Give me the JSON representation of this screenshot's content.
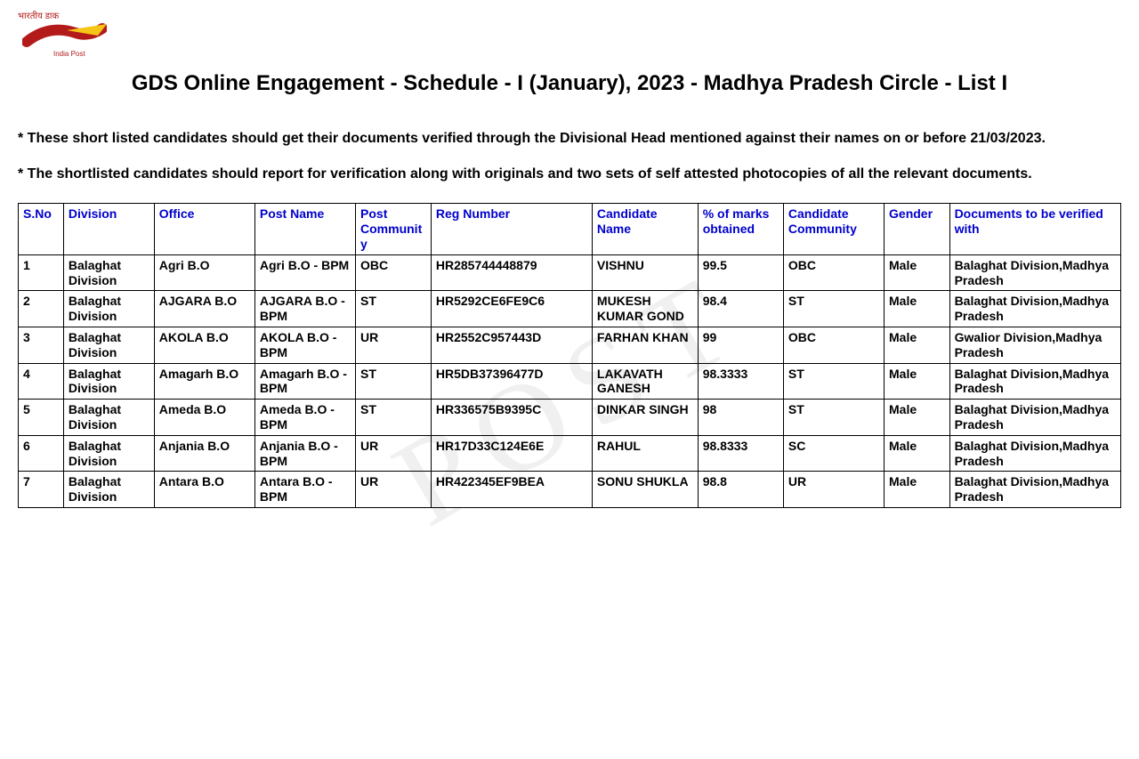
{
  "logo": {
    "top_text": "भारतीय डाक",
    "sub_text": "India Post",
    "color_red": "#b31b1b",
    "color_yellow": "#f5c518"
  },
  "title": "GDS Online Engagement - Schedule - I (January), 2023 - Madhya Pradesh Circle - List I",
  "notes": [
    "* These short listed candidates should get their documents verified through the Divisional Head mentioned against their names on or before 21/03/2023.",
    "* The shortlisted candidates should report for verification along with originals and two sets of self attested photocopies of all the relevant documents."
  ],
  "watermark": "POST",
  "table": {
    "headers": {
      "sno": "S.No",
      "division": "Division",
      "office": "Office",
      "post_name": "Post Name",
      "post_community": "Post Community",
      "reg_number": "Reg Number",
      "candidate_name": "Candidate Name",
      "marks": "% of marks obtained",
      "candidate_community": "Candidate Community",
      "gender": "Gender",
      "verified_with": "Documents to be verified with"
    },
    "rows": [
      {
        "sno": "1",
        "division": "Balaghat Division",
        "office": "Agri B.O",
        "post_name": "Agri B.O - BPM",
        "post_community": "OBC",
        "reg_number": "HR285744448879",
        "candidate_name": "VISHNU",
        "marks": "99.5",
        "candidate_community": "OBC",
        "gender": "Male",
        "verified_with": "Balaghat Division,Madhya Pradesh"
      },
      {
        "sno": "2",
        "division": "Balaghat Division",
        "office": "AJGARA B.O",
        "post_name": "AJGARA B.O - BPM",
        "post_community": "ST",
        "reg_number": "HR5292CE6FE9C6",
        "candidate_name": "MUKESH KUMAR GOND",
        "marks": "98.4",
        "candidate_community": "ST",
        "gender": "Male",
        "verified_with": "Balaghat Division,Madhya Pradesh"
      },
      {
        "sno": "3",
        "division": "Balaghat Division",
        "office": "AKOLA B.O",
        "post_name": "AKOLA B.O - BPM",
        "post_community": "UR",
        "reg_number": "HR2552C957443D",
        "candidate_name": "FARHAN KHAN",
        "marks": "99",
        "candidate_community": "OBC",
        "gender": "Male",
        "verified_with": "Gwalior Division,Madhya Pradesh"
      },
      {
        "sno": "4",
        "division": "Balaghat Division",
        "office": "Amagarh B.O",
        "post_name": "Amagarh B.O - BPM",
        "post_community": "ST",
        "reg_number": "HR5DB37396477D",
        "candidate_name": "LAKAVATH GANESH",
        "marks": "98.3333",
        "candidate_community": "ST",
        "gender": "Male",
        "verified_with": "Balaghat Division,Madhya Pradesh"
      },
      {
        "sno": "5",
        "division": "Balaghat Division",
        "office": "Ameda B.O",
        "post_name": "Ameda B.O - BPM",
        "post_community": "ST",
        "reg_number": "HR336575B9395C",
        "candidate_name": "DINKAR SINGH",
        "marks": "98",
        "candidate_community": "ST",
        "gender": "Male",
        "verified_with": "Balaghat Division,Madhya Pradesh"
      },
      {
        "sno": "6",
        "division": "Balaghat Division",
        "office": "Anjania B.O",
        "post_name": "Anjania B.O - BPM",
        "post_community": "UR",
        "reg_number": "HR17D33C124E6E",
        "candidate_name": "RAHUL",
        "marks": "98.8333",
        "candidate_community": "SC",
        "gender": "Male",
        "verified_with": "Balaghat Division,Madhya Pradesh"
      },
      {
        "sno": "7",
        "division": "Balaghat Division",
        "office": "Antara B.O",
        "post_name": "Antara B.O - BPM",
        "post_community": "UR",
        "reg_number": "HR422345EF9BEA",
        "candidate_name": "SONU SHUKLA",
        "marks": "98.8",
        "candidate_community": "UR",
        "gender": "Male",
        "verified_with": "Balaghat Division,Madhya Pradesh"
      }
    ]
  }
}
